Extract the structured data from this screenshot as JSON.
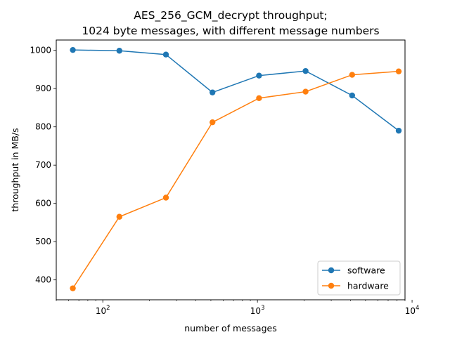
{
  "chart_data": {
    "type": "line",
    "title_lines": [
      "AES_256_GCM_decrypt throughput;",
      "1024 byte messages, with different message numbers"
    ],
    "xlabel": "number of messages",
    "ylabel": "throughput in MB/s",
    "x_scale": "log",
    "xlim": [
      50,
      9000
    ],
    "ylim": [
      348,
      1027
    ],
    "x_ticks": [
      {
        "value": 100,
        "base": "10",
        "exp": "2"
      },
      {
        "value": 1000,
        "base": "10",
        "exp": "3"
      },
      {
        "value": 10000,
        "base": "10",
        "exp": "4"
      }
    ],
    "y_ticks": [
      400,
      500,
      600,
      700,
      800,
      900,
      1000
    ],
    "x": [
      64,
      128,
      256,
      512,
      1024,
      2048,
      4096,
      8192
    ],
    "series": [
      {
        "name": "software",
        "color": "#1f77b4",
        "values": [
          1001,
          999,
          989,
          890,
          934,
          946,
          882,
          790
        ]
      },
      {
        "name": "hardware",
        "color": "#ff7f0e",
        "values": [
          378,
          565,
          615,
          812,
          875,
          892,
          936,
          945
        ]
      }
    ],
    "legend_position": "lower right",
    "grid": false
  }
}
